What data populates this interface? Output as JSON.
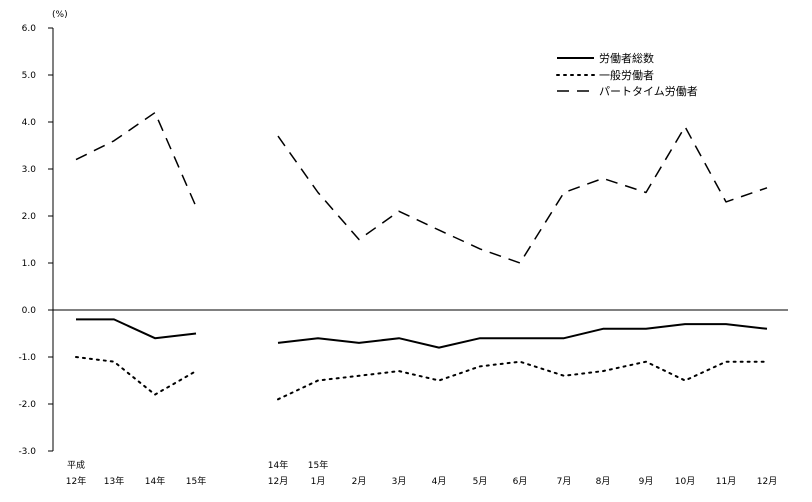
{
  "chart_data": {
    "type": "line",
    "unit_label": "(%)",
    "ylim": [
      -3.0,
      6.0
    ],
    "y_ticks": [
      "6.0",
      "5.0",
      "4.0",
      "3.0",
      "2.0",
      "1.0",
      "0.0",
      "-1.0",
      "-2.0",
      "-3.0"
    ],
    "x_labels": [
      {
        "top": "平成",
        "bottom": "12年"
      },
      {
        "top": "",
        "bottom": "13年"
      },
      {
        "top": "",
        "bottom": "14年"
      },
      {
        "top": "",
        "bottom": "15年"
      },
      {
        "top": "14年",
        "bottom": "12月"
      },
      {
        "top": "15年",
        "bottom": "1月"
      },
      {
        "top": "",
        "bottom": "2月"
      },
      {
        "top": "",
        "bottom": "3月"
      },
      {
        "top": "",
        "bottom": "4月"
      },
      {
        "top": "",
        "bottom": "5月"
      },
      {
        "top": "",
        "bottom": "6月"
      },
      {
        "top": "",
        "bottom": "7月"
      },
      {
        "top": "",
        "bottom": "8月"
      },
      {
        "top": "",
        "bottom": "9月"
      },
      {
        "top": "",
        "bottom": "10月"
      },
      {
        "top": "",
        "bottom": "11月"
      },
      {
        "top": "",
        "bottom": "12月"
      }
    ],
    "series": [
      {
        "name": "労働者総数",
        "style": "solid",
        "color": "#000000",
        "annual": [
          -0.2,
          -0.2,
          -0.6,
          -0.5
        ],
        "monthly": [
          -0.7,
          -0.6,
          -0.7,
          -0.6,
          -0.8,
          -0.6,
          -0.6,
          -0.6,
          -0.4,
          -0.4,
          -0.3,
          -0.3,
          -0.4
        ]
      },
      {
        "name": "一般労働者",
        "style": "dotted",
        "color": "#000000",
        "annual": [
          -1.0,
          -1.1,
          -1.8,
          -1.3
        ],
        "monthly": [
          -1.9,
          -1.5,
          -1.4,
          -1.3,
          -1.5,
          -1.2,
          -1.1,
          -1.4,
          -1.3,
          -1.1,
          -1.5,
          -1.1,
          -1.1
        ]
      },
      {
        "name": "パートタイム労働者",
        "style": "dashed",
        "color": "#000000",
        "annual": [
          3.2,
          3.6,
          4.2,
          2.2
        ],
        "monthly": [
          3.7,
          2.5,
          1.5,
          2.1,
          1.7,
          1.3,
          1.0,
          2.5,
          2.8,
          2.5,
          3.9,
          2.3,
          2.6
        ]
      }
    ],
    "legend_position": "top-right"
  }
}
